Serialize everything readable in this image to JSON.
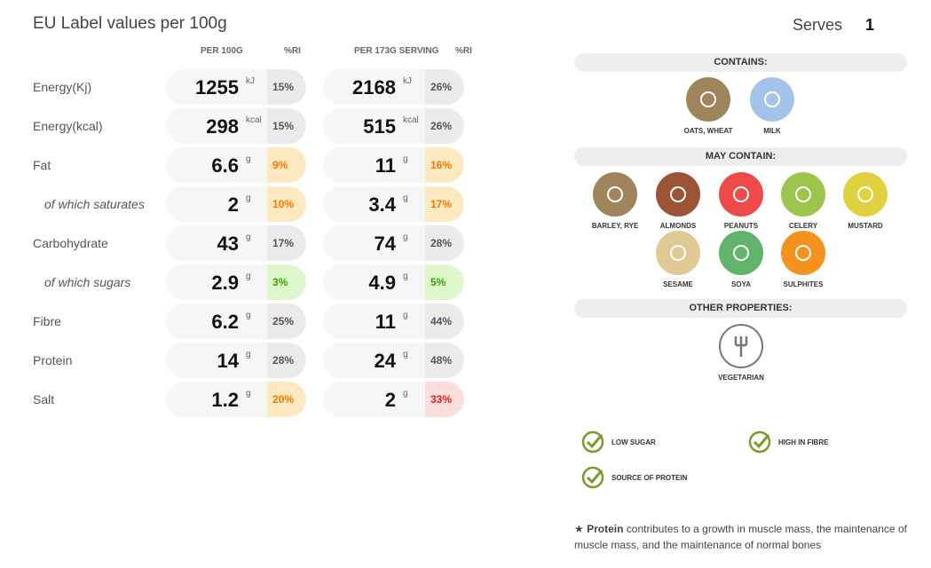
{
  "title": "EU Label values per 100g",
  "serves": {
    "label": "Serves",
    "value": "1"
  },
  "headers": {
    "per100": "PER 100G",
    "ri1": "%RI",
    "serving": "PER 173G SERVING",
    "ri2": "%RI"
  },
  "rows": [
    {
      "label": "Energy(Kj)",
      "sub": false,
      "v1": "1255",
      "u1": "kJ",
      "r1": "15%",
      "c1": "grey",
      "v2": "2168",
      "u2": "kJ",
      "r2": "26%",
      "c2": "grey"
    },
    {
      "label": "Energy(kcal)",
      "sub": false,
      "v1": "298",
      "u1": "kcal",
      "r1": "15%",
      "c1": "grey",
      "v2": "515",
      "u2": "kcal",
      "r2": "26%",
      "c2": "grey"
    },
    {
      "label": "Fat",
      "sub": false,
      "v1": "6.6",
      "u1": "g",
      "r1": "9%",
      "c1": "orange",
      "v2": "11",
      "u2": "g",
      "r2": "16%",
      "c2": "orange"
    },
    {
      "label": "of which saturates",
      "sub": true,
      "v1": "2",
      "u1": "g",
      "r1": "10%",
      "c1": "orange",
      "v2": "3.4",
      "u2": "g",
      "r2": "17%",
      "c2": "orange"
    },
    {
      "label": "Carbohydrate",
      "sub": false,
      "v1": "43",
      "u1": "g",
      "r1": "17%",
      "c1": "grey",
      "v2": "74",
      "u2": "g",
      "r2": "28%",
      "c2": "grey"
    },
    {
      "label": "of which sugars",
      "sub": true,
      "v1": "2.9",
      "u1": "g",
      "r1": "3%",
      "c1": "green",
      "v2": "4.9",
      "u2": "g",
      "r2": "5%",
      "c2": "green"
    },
    {
      "label": "Fibre",
      "sub": false,
      "v1": "6.2",
      "u1": "g",
      "r1": "25%",
      "c1": "grey",
      "v2": "11",
      "u2": "g",
      "r2": "44%",
      "c2": "grey"
    },
    {
      "label": "Protein",
      "sub": false,
      "v1": "14",
      "u1": "g",
      "r1": "28%",
      "c1": "grey",
      "v2": "24",
      "u2": "g",
      "r2": "48%",
      "c2": "grey"
    },
    {
      "label": "Salt",
      "sub": false,
      "v1": "1.2",
      "u1": "g",
      "r1": "20%",
      "c1": "orange",
      "v2": "2",
      "u2": "g",
      "r2": "33%",
      "c2": "red"
    }
  ],
  "contains": {
    "title": "CONTAINS:",
    "items": [
      {
        "label": "OATS, WHEAT",
        "icon": "wheat-icon",
        "color": "#a0845c"
      },
      {
        "label": "MILK",
        "icon": "milk-icon",
        "color": "#a3c4e8"
      }
    ]
  },
  "may_contain": {
    "title": "MAY CONTAIN:",
    "items": [
      {
        "label": "BARLEY, RYE",
        "icon": "wheat-icon",
        "color": "#a0845c"
      },
      {
        "label": "ALMONDS",
        "icon": "almond-icon",
        "color": "#9c5436"
      },
      {
        "label": "PEANUTS",
        "icon": "peanut-icon",
        "color": "#ee4a4a"
      },
      {
        "label": "CELERY",
        "icon": "celery-icon",
        "color": "#9dc44d"
      },
      {
        "label": "MUSTARD",
        "icon": "mustard-icon",
        "color": "#e0d23e"
      },
      {
        "label": "SESAME",
        "icon": "sesame-icon",
        "color": "#e1c994"
      },
      {
        "label": "SOYA",
        "icon": "soya-icon",
        "color": "#5fb36a"
      },
      {
        "label": "SULPHITES",
        "icon": "sulphites-icon",
        "color": "#f5921e"
      }
    ]
  },
  "other": {
    "title": "OTHER PROPERTIES:",
    "items": [
      {
        "label": "VEGETARIAN",
        "icon": "vegetarian-icon"
      }
    ]
  },
  "claims": [
    "LOW SUGAR",
    "HIGH IN FIBRE",
    "SOURCE OF PROTEIN"
  ],
  "footnote": {
    "star": "★",
    "bold": "Protein",
    "text": " contributes to a growth in muscle mass, the maintenance of muscle mass, and the maintenance of normal bones"
  }
}
